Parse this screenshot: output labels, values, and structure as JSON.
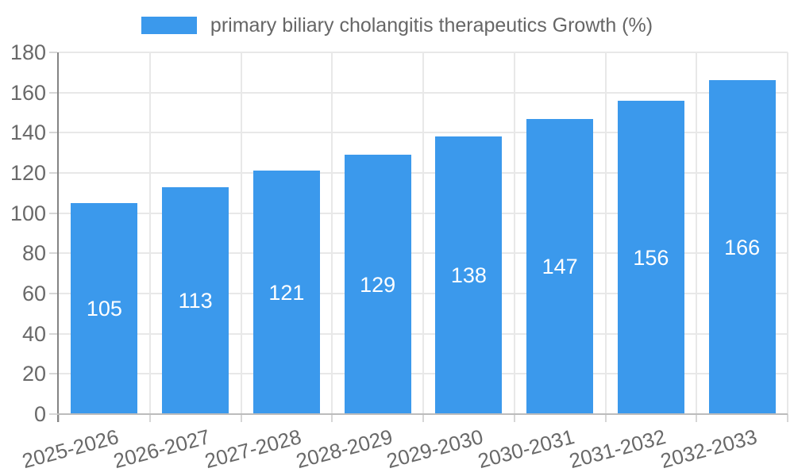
{
  "legend": {
    "label": "primary biliary cholangitis therapeutics Growth (%)"
  },
  "chart_data": {
    "type": "bar",
    "title": "",
    "series_name": "primary biliary cholangitis therapeutics Growth (%)",
    "categories": [
      "2025-2026",
      "2026-2027",
      "2027-2028",
      "2028-2029",
      "2029-2030",
      "2030-2031",
      "2031-2032",
      "2032-2033"
    ],
    "values": [
      105,
      113,
      121,
      129,
      138,
      147,
      156,
      166
    ],
    "xlabel": "",
    "ylabel": "",
    "ylim": [
      0,
      180
    ],
    "yticks": [
      0,
      20,
      40,
      60,
      80,
      100,
      120,
      140,
      160,
      180
    ],
    "grid": true,
    "legend_position": "top",
    "bar_color": "#3b99ec",
    "value_label_color": "#ffffff",
    "tick_label_color": "#696969",
    "legend_text_color": "#666666",
    "gridline_color": "#e8e8e8",
    "y_axis_line_color": "#848484",
    "x_axis_line_color": "#bcbcbc"
  }
}
